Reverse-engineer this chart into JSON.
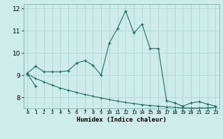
{
  "xlabel": "Humidex (Indice chaleur)",
  "background_color": "#ceecea",
  "line_color": "#1a6e64",
  "x_values": [
    0,
    1,
    2,
    3,
    4,
    5,
    6,
    7,
    8,
    9,
    10,
    11,
    12,
    13,
    14,
    15,
    16,
    17,
    18,
    19,
    20,
    21,
    22,
    23
  ],
  "line1_y": [
    9.1,
    9.4,
    9.15,
    9.15,
    9.15,
    9.2,
    9.55,
    9.65,
    9.45,
    9.0,
    10.45,
    11.1,
    11.9,
    10.9,
    11.3,
    10.2,
    10.2,
    7.85,
    7.75,
    7.6,
    7.75,
    7.8,
    7.7,
    7.6
  ],
  "line2_y": [
    9.05,
    8.5
  ],
  "line3_y": [
    9.05,
    8.85,
    8.7,
    8.55,
    8.42,
    8.32,
    8.22,
    8.13,
    8.05,
    7.97,
    7.9,
    7.83,
    7.77,
    7.72,
    7.67,
    7.63,
    7.6,
    7.57,
    7.55,
    7.53,
    7.52,
    7.52,
    7.53,
    7.55
  ],
  "ylim": [
    7.5,
    12.2
  ],
  "yticks": [
    8,
    9,
    10,
    11,
    12
  ],
  "xlim": [
    -0.5,
    23.5
  ],
  "grid_color": "#aed4d0",
  "grid_major_color": "#aed4d0"
}
